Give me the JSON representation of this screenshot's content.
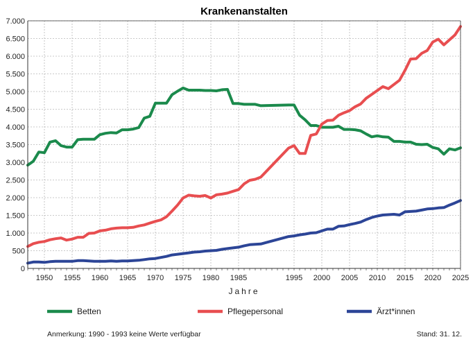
{
  "chart_data": {
    "type": "line",
    "title": "Krankenanstalten",
    "xlabel": "Jahre",
    "ylabel": "",
    "xlim": [
      1947,
      2025
    ],
    "ylim": [
      0,
      7000
    ],
    "x_ticks": [
      1950,
      1955,
      1960,
      1965,
      1970,
      1975,
      1980,
      1985,
      1995,
      2000,
      2005,
      2010,
      2015,
      2020,
      2025
    ],
    "y_ticks": [
      0,
      500,
      1000,
      1500,
      2000,
      2500,
      3000,
      3500,
      4000,
      4500,
      5000,
      5500,
      6000,
      6500,
      7000
    ],
    "y_tick_labels": [
      "0",
      "500",
      "1.000",
      "1.500",
      "2.000",
      "2.500",
      "3.000",
      "3.500",
      "4.000",
      "4.500",
      "5.000",
      "5.500",
      "6.000",
      "6.500",
      "7.000"
    ],
    "grid": true,
    "legend_position": "bottom",
    "series": [
      {
        "name": "Betten",
        "color": "#1b8a4c",
        "points": [
          [
            1947,
            2920
          ],
          [
            1948,
            3030
          ],
          [
            1949,
            3290
          ],
          [
            1950,
            3270
          ],
          [
            1951,
            3570
          ],
          [
            1952,
            3610
          ],
          [
            1953,
            3470
          ],
          [
            1954,
            3430
          ],
          [
            1955,
            3430
          ],
          [
            1956,
            3640
          ],
          [
            1957,
            3650
          ],
          [
            1958,
            3650
          ],
          [
            1959,
            3650
          ],
          [
            1960,
            3780
          ],
          [
            1961,
            3820
          ],
          [
            1962,
            3840
          ],
          [
            1963,
            3830
          ],
          [
            1964,
            3920
          ],
          [
            1965,
            3920
          ],
          [
            1966,
            3940
          ],
          [
            1967,
            3980
          ],
          [
            1968,
            4250
          ],
          [
            1969,
            4300
          ],
          [
            1970,
            4670
          ],
          [
            1971,
            4670
          ],
          [
            1972,
            4670
          ],
          [
            1973,
            4910
          ],
          [
            1974,
            5010
          ],
          [
            1975,
            5100
          ],
          [
            1976,
            5040
          ],
          [
            1977,
            5040
          ],
          [
            1978,
            5040
          ],
          [
            1979,
            5030
          ],
          [
            1980,
            5030
          ],
          [
            1981,
            5020
          ],
          [
            1982,
            5050
          ],
          [
            1983,
            5060
          ],
          [
            1984,
            4660
          ],
          [
            1985,
            4660
          ],
          [
            1986,
            4640
          ],
          [
            1987,
            4640
          ],
          [
            1988,
            4640
          ],
          [
            1989,
            4600
          ],
          [
            1994,
            4620
          ],
          [
            1995,
            4620
          ],
          [
            1996,
            4330
          ],
          [
            1997,
            4200
          ],
          [
            1998,
            4040
          ],
          [
            1999,
            4040
          ],
          [
            2000,
            3990
          ],
          [
            2001,
            3990
          ],
          [
            2002,
            3990
          ],
          [
            2003,
            4020
          ],
          [
            2004,
            3930
          ],
          [
            2005,
            3930
          ],
          [
            2006,
            3920
          ],
          [
            2007,
            3890
          ],
          [
            2008,
            3800
          ],
          [
            2009,
            3720
          ],
          [
            2010,
            3750
          ],
          [
            2011,
            3720
          ],
          [
            2012,
            3710
          ],
          [
            2013,
            3590
          ],
          [
            2014,
            3590
          ],
          [
            2015,
            3570
          ],
          [
            2016,
            3570
          ],
          [
            2017,
            3510
          ],
          [
            2018,
            3500
          ],
          [
            2019,
            3510
          ],
          [
            2020,
            3420
          ],
          [
            2021,
            3380
          ],
          [
            2022,
            3230
          ],
          [
            2023,
            3380
          ],
          [
            2024,
            3350
          ],
          [
            2025,
            3410
          ]
        ]
      },
      {
        "name": "Pflegepersonal",
        "color": "#e84e50",
        "points": [
          [
            1947,
            620
          ],
          [
            1948,
            700
          ],
          [
            1949,
            740
          ],
          [
            1950,
            760
          ],
          [
            1951,
            810
          ],
          [
            1952,
            840
          ],
          [
            1953,
            860
          ],
          [
            1954,
            800
          ],
          [
            1955,
            830
          ],
          [
            1956,
            880
          ],
          [
            1957,
            880
          ],
          [
            1958,
            990
          ],
          [
            1959,
            1000
          ],
          [
            1960,
            1060
          ],
          [
            1961,
            1080
          ],
          [
            1962,
            1120
          ],
          [
            1963,
            1140
          ],
          [
            1964,
            1150
          ],
          [
            1965,
            1150
          ],
          [
            1966,
            1160
          ],
          [
            1967,
            1200
          ],
          [
            1968,
            1230
          ],
          [
            1969,
            1280
          ],
          [
            1970,
            1330
          ],
          [
            1971,
            1370
          ],
          [
            1972,
            1460
          ],
          [
            1973,
            1620
          ],
          [
            1974,
            1790
          ],
          [
            1975,
            1990
          ],
          [
            1976,
            2070
          ],
          [
            1977,
            2050
          ],
          [
            1978,
            2040
          ],
          [
            1979,
            2060
          ],
          [
            1980,
            1990
          ],
          [
            1981,
            2080
          ],
          [
            1982,
            2100
          ],
          [
            1983,
            2130
          ],
          [
            1984,
            2180
          ],
          [
            1985,
            2230
          ],
          [
            1986,
            2390
          ],
          [
            1987,
            2490
          ],
          [
            1988,
            2520
          ],
          [
            1989,
            2580
          ],
          [
            1994,
            3400
          ],
          [
            1995,
            3470
          ],
          [
            1996,
            3250
          ],
          [
            1997,
            3250
          ],
          [
            1998,
            3760
          ],
          [
            1999,
            3800
          ],
          [
            2000,
            4080
          ],
          [
            2001,
            4180
          ],
          [
            2002,
            4190
          ],
          [
            2003,
            4330
          ],
          [
            2004,
            4400
          ],
          [
            2005,
            4460
          ],
          [
            2006,
            4570
          ],
          [
            2007,
            4650
          ],
          [
            2008,
            4810
          ],
          [
            2009,
            4920
          ],
          [
            2010,
            5030
          ],
          [
            2011,
            5140
          ],
          [
            2012,
            5080
          ],
          [
            2013,
            5200
          ],
          [
            2014,
            5320
          ],
          [
            2015,
            5600
          ],
          [
            2016,
            5920
          ],
          [
            2017,
            5930
          ],
          [
            2018,
            6080
          ],
          [
            2019,
            6160
          ],
          [
            2020,
            6400
          ],
          [
            2021,
            6480
          ],
          [
            2022,
            6320
          ],
          [
            2023,
            6460
          ],
          [
            2024,
            6600
          ],
          [
            2025,
            6840
          ]
        ]
      },
      {
        "name": "Ärzt*innen",
        "color": "#2c4597",
        "points": [
          [
            1947,
            150
          ],
          [
            1948,
            180
          ],
          [
            1949,
            180
          ],
          [
            1950,
            170
          ],
          [
            1951,
            190
          ],
          [
            1952,
            200
          ],
          [
            1953,
            200
          ],
          [
            1954,
            200
          ],
          [
            1955,
            200
          ],
          [
            1956,
            220
          ],
          [
            1957,
            220
          ],
          [
            1958,
            210
          ],
          [
            1959,
            200
          ],
          [
            1960,
            200
          ],
          [
            1961,
            200
          ],
          [
            1962,
            210
          ],
          [
            1963,
            200
          ],
          [
            1964,
            210
          ],
          [
            1965,
            210
          ],
          [
            1966,
            220
          ],
          [
            1967,
            230
          ],
          [
            1968,
            250
          ],
          [
            1969,
            270
          ],
          [
            1970,
            280
          ],
          [
            1971,
            310
          ],
          [
            1972,
            340
          ],
          [
            1973,
            380
          ],
          [
            1974,
            400
          ],
          [
            1975,
            420
          ],
          [
            1976,
            440
          ],
          [
            1977,
            460
          ],
          [
            1978,
            470
          ],
          [
            1979,
            490
          ],
          [
            1980,
            500
          ],
          [
            1981,
            510
          ],
          [
            1982,
            540
          ],
          [
            1983,
            560
          ],
          [
            1984,
            580
          ],
          [
            1985,
            600
          ],
          [
            1986,
            640
          ],
          [
            1987,
            670
          ],
          [
            1988,
            680
          ],
          [
            1989,
            690
          ],
          [
            1994,
            900
          ],
          [
            1995,
            920
          ],
          [
            1996,
            950
          ],
          [
            1997,
            970
          ],
          [
            1998,
            1000
          ],
          [
            1999,
            1010
          ],
          [
            2000,
            1060
          ],
          [
            2001,
            1110
          ],
          [
            2002,
            1110
          ],
          [
            2003,
            1190
          ],
          [
            2004,
            1200
          ],
          [
            2005,
            1240
          ],
          [
            2006,
            1270
          ],
          [
            2007,
            1310
          ],
          [
            2008,
            1380
          ],
          [
            2009,
            1440
          ],
          [
            2010,
            1480
          ],
          [
            2011,
            1510
          ],
          [
            2012,
            1520
          ],
          [
            2013,
            1530
          ],
          [
            2014,
            1510
          ],
          [
            2015,
            1600
          ],
          [
            2016,
            1610
          ],
          [
            2017,
            1620
          ],
          [
            2018,
            1650
          ],
          [
            2019,
            1680
          ],
          [
            2020,
            1690
          ],
          [
            2021,
            1710
          ],
          [
            2022,
            1720
          ],
          [
            2023,
            1790
          ],
          [
            2024,
            1850
          ],
          [
            2025,
            1920
          ]
        ]
      }
    ],
    "annotation": "Anmerkung: 1990 - 1993 keine Werte verfügbar",
    "stand": "Stand: 31. 12."
  }
}
